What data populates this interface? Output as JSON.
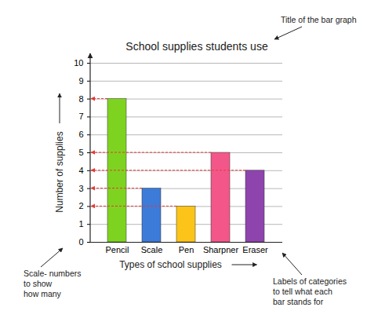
{
  "chart_data": {
    "type": "bar",
    "title": "School supplies students use",
    "categories": [
      "Pencil",
      "Scale",
      "Pen",
      "Sharpner",
      "Eraser"
    ],
    "values": [
      8,
      3,
      2,
      5,
      4
    ],
    "colors": [
      "#7ed321",
      "#3d7bd9",
      "#fcc419",
      "#f3578a",
      "#8e44ad"
    ],
    "x_label": "Types of school supplies",
    "y_label": "Number of supplies",
    "ylim": [
      0,
      10
    ],
    "yticks": [
      0,
      1,
      2,
      3,
      4,
      5,
      6,
      7,
      8,
      9,
      10
    ],
    "grid": true,
    "annotations": [
      "Title of the bar graph",
      "Scale- numbers\nto show\nhow many",
      "Labels of categories\nto tell what each\nbar stands for"
    ]
  }
}
